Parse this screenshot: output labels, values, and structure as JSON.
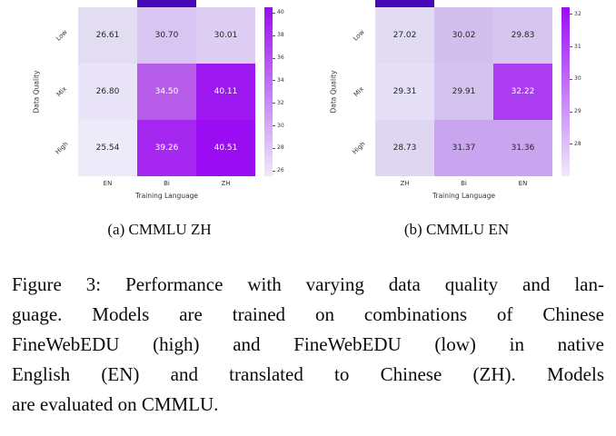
{
  "colors": {
    "cmap_min": "#eeeaf9",
    "cmap_max": "#9a0df2",
    "partial_cell": "#4708b8",
    "text_dark": "#262626",
    "text_light": "#ffffff"
  },
  "chart_data": [
    {
      "type": "heatmap",
      "title": "(a) CMMLU ZH",
      "xlabel": "Training Language",
      "ylabel": "Data Quality",
      "x_categories": [
        "EN",
        "Bi",
        "ZH"
      ],
      "y_categories": [
        "Low",
        "Mix",
        "High"
      ],
      "values": [
        [
          26.61,
          30.7,
          30.01
        ],
        [
          26.8,
          34.5,
          40.11
        ],
        [
          25.54,
          39.26,
          40.51
        ]
      ],
      "cell_colors": [
        [
          "#e2ddf1",
          "#d9c5f1",
          "#ddcdf2"
        ],
        [
          "#e9e4f7",
          "#b55ce9",
          "#9d17ef"
        ],
        [
          "#edeaf9",
          "#a527f0",
          "#9a0df2"
        ]
      ],
      "colorbar_ticks": [
        40,
        38,
        36,
        34,
        32,
        30,
        28,
        26
      ],
      "top_partial_cell_col": 1
    },
    {
      "type": "heatmap",
      "title": "(b) CMMLU EN",
      "xlabel": "Training Language",
      "ylabel": "Data Quality",
      "x_categories": [
        "ZH",
        "Bi",
        "EN"
      ],
      "y_categories": [
        "Low",
        "Mix",
        "High"
      ],
      "values": [
        [
          27.02,
          30.02,
          29.83
        ],
        [
          29.31,
          29.91,
          32.22
        ],
        [
          28.73,
          31.37,
          31.36
        ]
      ],
      "cell_colors": [
        [
          "#e1dcf1",
          "#d2bfee",
          "#d6c5ef"
        ],
        [
          "#e6e0f6",
          "#d5c3ef",
          "#ab3cf0"
        ],
        [
          "#dfd6f1",
          "#c9a4ef",
          "#c9a4ef"
        ]
      ],
      "colorbar_ticks": [
        32,
        31,
        30,
        29,
        28
      ],
      "top_partial_cell_col": 0
    }
  ],
  "figure": {
    "caption_lines": [
      "Figure 3: Performance with varying data quality and lan-",
      "guage. Models are trained on combinations of Chinese",
      "FineWebEDU (high) and FineWebEDU (low) in native",
      "English (EN) and translated to Chinese (ZH). Models",
      "are evaluated on CMMLU."
    ]
  }
}
